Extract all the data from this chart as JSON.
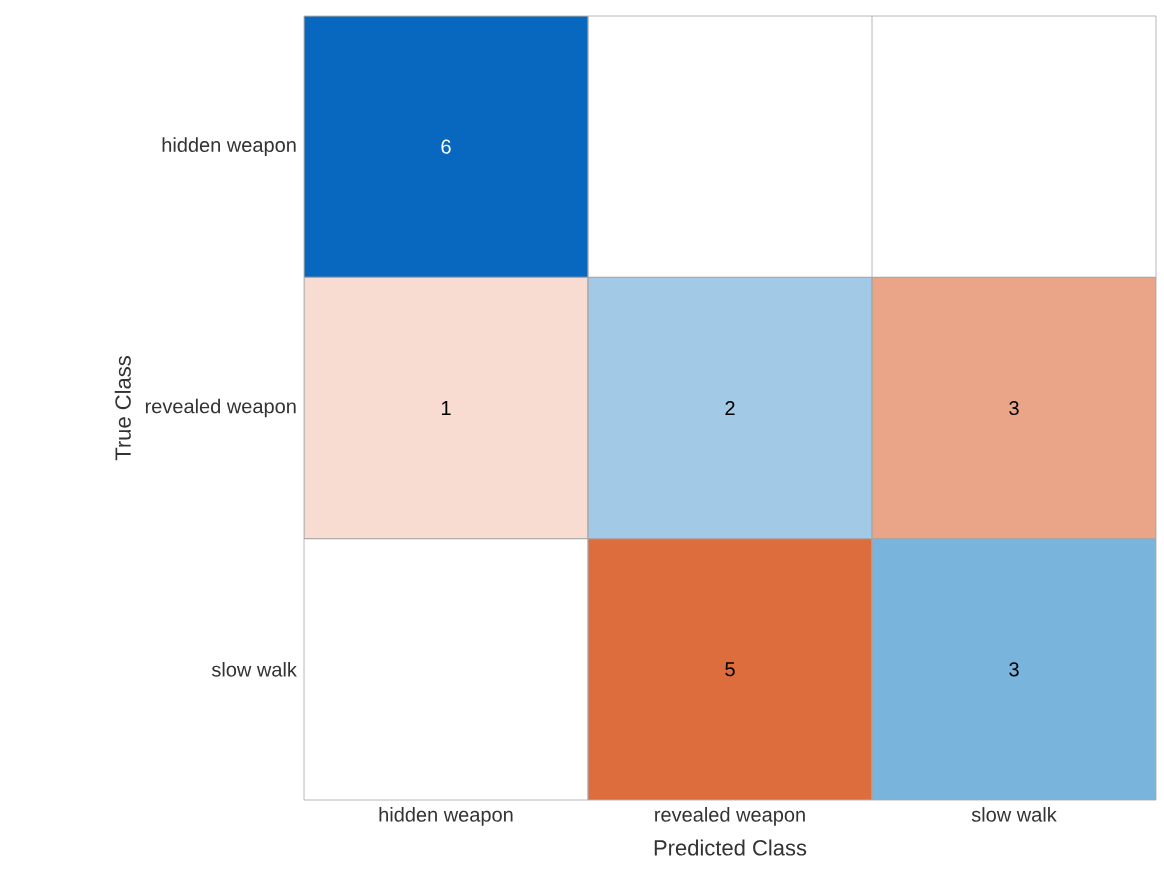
{
  "chart_data": {
    "type": "heatmap",
    "xlabel": "Predicted Class",
    "ylabel": "True Class",
    "categories": [
      "hidden weapon",
      "revealed weapon",
      "slow walk"
    ],
    "y_categories": [
      "hidden weapon",
      "revealed weapon",
      "slow walk"
    ],
    "cells": [
      [
        6,
        null,
        null
      ],
      [
        1,
        2,
        3
      ],
      [
        null,
        5,
        3
      ]
    ],
    "colors": [
      [
        "#0868c0",
        null,
        null
      ],
      [
        "#f8dcd2",
        "#a2c9e6",
        "#eaa487"
      ],
      [
        null,
        "#de6d3e",
        "#79b4dc"
      ]
    ],
    "data_labels": true,
    "grid": true
  }
}
